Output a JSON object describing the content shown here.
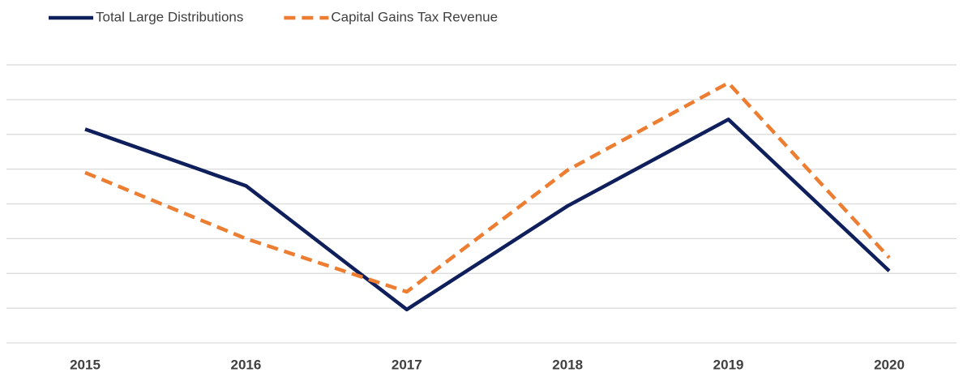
{
  "chart_data": {
    "type": "line",
    "categories": [
      "2015",
      "2016",
      "2017",
      "2018",
      "2019",
      "2020"
    ],
    "series": [
      {
        "name": "Total Large Distributions",
        "color": "#0e1f5b",
        "dash": "solid",
        "values": [
          6.15,
          4.52,
          0.96,
          3.94,
          6.43,
          2.07
        ]
      },
      {
        "name": "Capital Gains Tax Revenue",
        "color": "#ed7d31",
        "dash": "dashed",
        "values": [
          4.9,
          3.0,
          1.47,
          4.97,
          7.48,
          2.45
        ]
      }
    ],
    "ylim": [
      0,
      8
    ],
    "yticks": [
      0,
      1,
      2,
      3,
      4,
      5,
      6,
      7,
      8
    ],
    "grid": true,
    "legend": "top-left"
  }
}
